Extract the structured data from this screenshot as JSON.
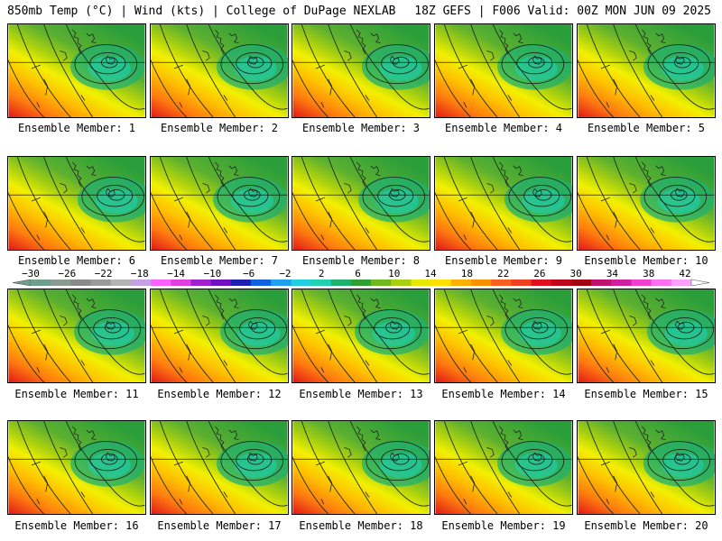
{
  "header": {
    "left_title": "850mb Temp (°C) | Wind (kts) | College of DuPage NEXLAB",
    "right_title": "18Z GEFS | F006 Valid: 00Z MON JUN 09 2025"
  },
  "panels": [
    {
      "label": "Ensemble Member: 1"
    },
    {
      "label": "Ensemble Member: 2"
    },
    {
      "label": "Ensemble Member: 3"
    },
    {
      "label": "Ensemble Member: 4"
    },
    {
      "label": "Ensemble Member: 5"
    },
    {
      "label": "Ensemble Member: 6"
    },
    {
      "label": "Ensemble Member: 7"
    },
    {
      "label": "Ensemble Member: 8"
    },
    {
      "label": "Ensemble Member: 9"
    },
    {
      "label": "Ensemble Member: 10"
    },
    {
      "label": "Ensemble Member: 11"
    },
    {
      "label": "Ensemble Member: 12"
    },
    {
      "label": "Ensemble Member: 13"
    },
    {
      "label": "Ensemble Member: 14"
    },
    {
      "label": "Ensemble Member: 15"
    },
    {
      "label": "Ensemble Member: 16"
    },
    {
      "label": "Ensemble Member: 17"
    },
    {
      "label": "Ensemble Member: 18"
    },
    {
      "label": "Ensemble Member: 19"
    },
    {
      "label": "Ensemble Member: 20"
    }
  ],
  "colorbar": {
    "tick_labels": [
      "−30",
      "−26",
      "−22",
      "−18",
      "−14",
      "−10",
      "−6",
      "−2",
      "2",
      "6",
      "10",
      "14",
      "18",
      "22",
      "26",
      "30",
      "34",
      "38",
      "42"
    ],
    "colors": [
      "#6e9e8c",
      "#8c9a94",
      "#8a8a8a",
      "#9a9a9a",
      "#b4b4b4",
      "#c8a0e6",
      "#ff60ff",
      "#e040e0",
      "#a020d0",
      "#7010c0",
      "#2020b0",
      "#1060e0",
      "#20a0f0",
      "#20d0e0",
      "#20d0b0",
      "#20b070",
      "#30a030",
      "#70b820",
      "#a8d010",
      "#e8e800",
      "#ffe000",
      "#ffb000",
      "#ff9000",
      "#ff6020",
      "#f04020",
      "#e01020",
      "#c00018",
      "#a00010",
      "#c01070",
      "#d020a0",
      "#f040d0",
      "#ff70f0",
      "#ffa0ff"
    ]
  }
}
